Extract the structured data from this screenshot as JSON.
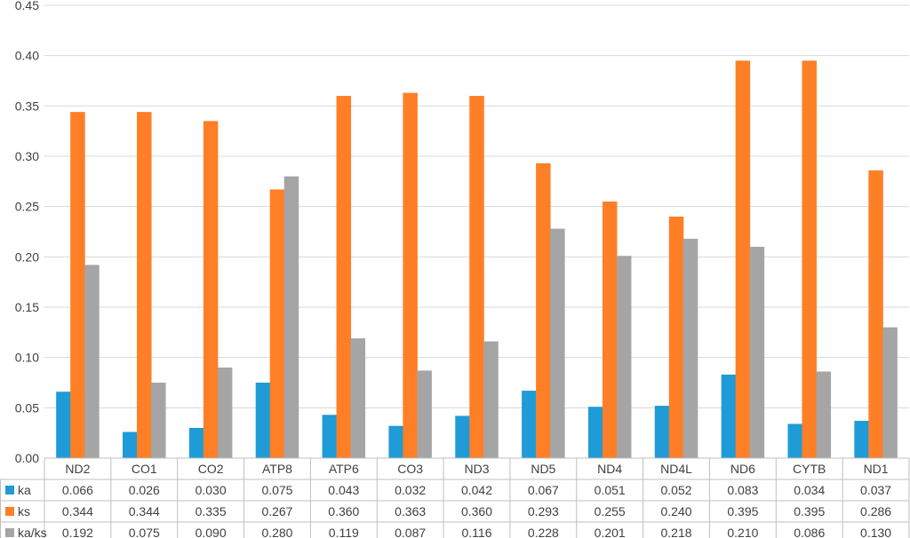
{
  "chart_data": {
    "type": "bar",
    "categories": [
      "ND2",
      "CO1",
      "CO2",
      "ATP8",
      "ATP6",
      "CO3",
      "ND3",
      "ND5",
      "ND4",
      "ND4L",
      "ND6",
      "CYTB",
      "ND1"
    ],
    "series": [
      {
        "name": "ka",
        "color": "#1f9bd7",
        "values": [
          0.066,
          0.026,
          0.03,
          0.075,
          0.043,
          0.032,
          0.042,
          0.067,
          0.051,
          0.052,
          0.083,
          0.034,
          0.037
        ],
        "labels": [
          "0.066",
          "0.026",
          "0.030",
          "0.075",
          "0.043",
          "0.032",
          "0.042",
          "0.067",
          "0.051",
          "0.052",
          "0.083",
          "0.034",
          "0.037"
        ]
      },
      {
        "name": "ks",
        "color": "#ff7f27",
        "values": [
          0.344,
          0.344,
          0.335,
          0.267,
          0.36,
          0.363,
          0.36,
          0.293,
          0.255,
          0.24,
          0.395,
          0.395,
          0.286
        ],
        "labels": [
          "0.344",
          "0.344",
          "0.335",
          "0.267",
          "0.360",
          "0.363",
          "0.360",
          "0.293",
          "0.255",
          "0.240",
          "0.395",
          "0.395",
          "0.286"
        ]
      },
      {
        "name": "ka/ks",
        "color": "#a5a5a5",
        "values": [
          0.192,
          0.075,
          0.09,
          0.28,
          0.119,
          0.087,
          0.116,
          0.228,
          0.201,
          0.218,
          0.21,
          0.086,
          0.13
        ],
        "labels": [
          "0.192",
          "0.075",
          "0.090",
          "0.280",
          "0.119",
          "0.087",
          "0.116",
          "0.228",
          "0.201",
          "0.218",
          "0.210",
          "0.086",
          "0.130"
        ]
      }
    ],
    "yticks": [
      "0.00",
      "0.05",
      "0.10",
      "0.15",
      "0.20",
      "0.25",
      "0.30",
      "0.35",
      "0.40",
      "0.45"
    ],
    "ylim": [
      0,
      0.45
    ],
    "grid": true,
    "legend": "data-table"
  }
}
